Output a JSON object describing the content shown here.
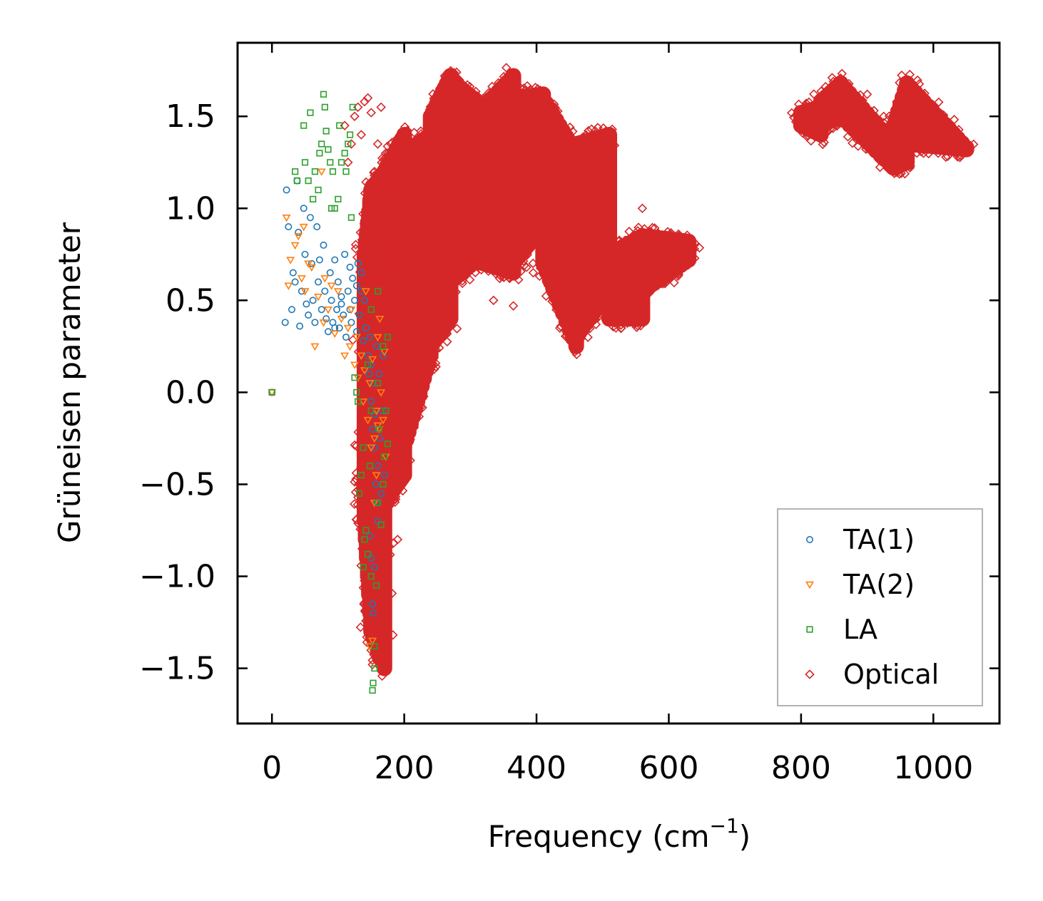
{
  "chart_data": {
    "type": "scatter",
    "title": "",
    "xlabel": "Frequency (cm",
    "xlabel_sup": "−1",
    "xlabel_close": ")",
    "ylabel": "Grüneisen parameter",
    "xlim": [
      -52,
      1100
    ],
    "ylim": [
      -1.8,
      1.9
    ],
    "xticks": [
      0,
      200,
      400,
      600,
      800,
      1000
    ],
    "xtick_labels": [
      "0",
      "200",
      "400",
      "600",
      "800",
      "1000"
    ],
    "yticks": [
      -1.5,
      -1.0,
      -0.5,
      0.0,
      0.5,
      1.0,
      1.5
    ],
    "ytick_labels": [
      "−1.5",
      "−1.0",
      "−0.5",
      "0.0",
      "0.5",
      "1.0",
      "1.5"
    ],
    "grid": false,
    "legend_position": "lower-right",
    "series": [
      {
        "name": "TA(1)",
        "marker": "circle",
        "color": "#1f77b4",
        "points": [
          [
            0,
            0
          ],
          [
            20,
            0.38
          ],
          [
            22,
            1.1
          ],
          [
            25,
            0.9
          ],
          [
            30,
            0.45
          ],
          [
            32,
            0.65
          ],
          [
            35,
            0.6
          ],
          [
            38,
            1.15
          ],
          [
            40,
            0.87
          ],
          [
            42,
            0.36
          ],
          [
            45,
            0.55
          ],
          [
            48,
            1.0
          ],
          [
            50,
            0.75
          ],
          [
            52,
            0.48
          ],
          [
            55,
            0.42
          ],
          [
            58,
            0.95
          ],
          [
            60,
            0.7
          ],
          [
            62,
            0.5
          ],
          [
            65,
            0.38
          ],
          [
            68,
            0.9
          ],
          [
            70,
            0.6
          ],
          [
            72,
            0.72
          ],
          [
            75,
            0.45
          ],
          [
            78,
            0.8
          ],
          [
            80,
            0.55
          ],
          [
            82,
            0.4
          ],
          [
            85,
            0.33
          ],
          [
            88,
            0.65
          ],
          [
            90,
            0.5
          ],
          [
            92,
            0.38
          ],
          [
            95,
            0.72
          ],
          [
            98,
            0.45
          ],
          [
            100,
            0.6
          ],
          [
            102,
            0.35
          ],
          [
            105,
            0.52
          ],
          [
            108,
            0.42
          ],
          [
            110,
            0.75
          ],
          [
            112,
            0.3
          ],
          [
            115,
            0.55
          ],
          [
            118,
            0.45
          ],
          [
            120,
            0.38
          ],
          [
            122,
            0.62
          ],
          [
            125,
            0.5
          ],
          [
            128,
            0.33
          ],
          [
            130,
            0.7
          ],
          [
            132,
            0.42
          ],
          [
            135,
            0.55
          ],
          [
            138,
            0.28
          ],
          [
            140,
            0.5
          ],
          [
            142,
            0.35
          ],
          [
            145,
            0.2
          ],
          [
            147,
            0.1
          ],
          [
            148,
            0.3
          ],
          [
            150,
            -0.05
          ],
          [
            150,
            0.15
          ],
          [
            152,
            -0.2
          ],
          [
            153,
            0.05
          ],
          [
            155,
            -0.3
          ],
          [
            155,
            -0.12
          ],
          [
            157,
            -0.5
          ],
          [
            158,
            0.25
          ],
          [
            160,
            -0.4
          ],
          [
            160,
            -0.7
          ],
          [
            162,
            0.1
          ],
          [
            163,
            -0.25
          ],
          [
            165,
            -0.55
          ],
          [
            167,
            -0.1
          ],
          [
            168,
            0.2
          ],
          [
            170,
            -0.45
          ],
          [
            150,
            -0.9
          ],
          [
            152,
            -1.15
          ],
          [
            153,
            -1.2
          ],
          [
            148,
            -0.78
          ],
          [
            155,
            -0.95
          ],
          [
            158,
            -0.6
          ],
          [
            135,
            0.65
          ],
          [
            128,
            0.58
          ],
          [
            118,
            0.68
          ],
          [
            95,
            0.35
          ],
          [
            105,
            0.48
          ]
        ]
      },
      {
        "name": "TA(2)",
        "marker": "triangle-down",
        "color": "#ff7f0e",
        "points": [
          [
            0,
            0
          ],
          [
            22,
            0.95
          ],
          [
            25,
            0.58
          ],
          [
            28,
            0.72
          ],
          [
            35,
            0.8
          ],
          [
            40,
            0.85
          ],
          [
            45,
            0.62
          ],
          [
            48,
            0.9
          ],
          [
            50,
            0.55
          ],
          [
            55,
            0.7
          ],
          [
            60,
            0.68
          ],
          [
            65,
            0.25
          ],
          [
            70,
            0.52
          ],
          [
            75,
            1.2
          ],
          [
            78,
            0.38
          ],
          [
            80,
            0.62
          ],
          [
            85,
            0.45
          ],
          [
            90,
            0.58
          ],
          [
            95,
            0.32
          ],
          [
            100,
            0.55
          ],
          [
            105,
            0.4
          ],
          [
            110,
            0.2
          ],
          [
            115,
            0.35
          ],
          [
            118,
            0.25
          ],
          [
            120,
            0.45
          ],
          [
            125,
            0.15
          ],
          [
            128,
            0.3
          ],
          [
            130,
            0.08
          ],
          [
            135,
            0.2
          ],
          [
            138,
            -0.05
          ],
          [
            140,
            0.12
          ],
          [
            142,
            0.55
          ],
          [
            145,
            -0.15
          ],
          [
            148,
            0.05
          ],
          [
            150,
            -0.3
          ],
          [
            152,
            0.18
          ],
          [
            155,
            -0.25
          ],
          [
            158,
            -0.1
          ],
          [
            160,
            0.3
          ],
          [
            162,
            -0.2
          ],
          [
            165,
            0.0
          ],
          [
            168,
            -0.15
          ],
          [
            170,
            0.22
          ],
          [
            172,
            -0.35
          ],
          [
            148,
            -1.38
          ],
          [
            152,
            -1.35
          ],
          [
            155,
            -0.6
          ],
          [
            158,
            -0.45
          ],
          [
            160,
            -0.18
          ],
          [
            163,
            0.4
          ]
        ]
      },
      {
        "name": "LA",
        "marker": "square",
        "color": "#2ca02c",
        "points": [
          [
            0,
            0
          ],
          [
            35,
            1.2
          ],
          [
            38,
            1.15
          ],
          [
            48,
            1.45
          ],
          [
            50,
            1.25
          ],
          [
            55,
            1.15
          ],
          [
            58,
            1.52
          ],
          [
            62,
            1.05
          ],
          [
            65,
            1.2
          ],
          [
            70,
            1.1
          ],
          [
            72,
            1.3
          ],
          [
            75,
            1.35
          ],
          [
            78,
            1.62
          ],
          [
            80,
            1.55
          ],
          [
            82,
            1.42
          ],
          [
            85,
            1.32
          ],
          [
            88,
            1.25
          ],
          [
            90,
            1.0
          ],
          [
            92,
            1.2
          ],
          [
            95,
            1.0
          ],
          [
            100,
            1.05
          ],
          [
            102,
            1.45
          ],
          [
            105,
            1.25
          ],
          [
            110,
            1.3
          ],
          [
            112,
            1.2
          ],
          [
            115,
            1.35
          ],
          [
            118,
            1.4
          ],
          [
            120,
            0.95
          ],
          [
            122,
            1.55
          ],
          [
            125,
            0.08
          ],
          [
            128,
            0.0
          ],
          [
            130,
            -0.05
          ],
          [
            132,
            -0.55
          ],
          [
            135,
            -0.45
          ],
          [
            138,
            -0.3
          ],
          [
            140,
            -0.8
          ],
          [
            142,
            -0.75
          ],
          [
            145,
            -0.88
          ],
          [
            148,
            -0.4
          ],
          [
            150,
            -1.0
          ],
          [
            150,
            -0.1
          ],
          [
            152,
            -1.62
          ],
          [
            153,
            -1.58
          ],
          [
            155,
            -1.5
          ],
          [
            155,
            -1.38
          ],
          [
            158,
            -1.05
          ],
          [
            160,
            -0.6
          ],
          [
            160,
            0.55
          ],
          [
            162,
            -0.2
          ],
          [
            165,
            -0.72
          ],
          [
            168,
            0.25
          ],
          [
            170,
            -0.35
          ],
          [
            172,
            -0.1
          ],
          [
            175,
            0.3
          ],
          [
            175,
            -0.28
          ],
          [
            138,
            -0.95
          ],
          [
            145,
            0.15
          ],
          [
            150,
            0.45
          ],
          [
            160,
            0.05
          ],
          [
            168,
            -0.5
          ]
        ]
      },
      {
        "name": "Optical",
        "marker": "diamond",
        "color": "#d62728",
        "dense_bands": [
          {
            "x_from": 140,
            "x_to": 150,
            "steps": 6,
            "lo_from": -0.7,
            "hi_from": 0.75,
            "lo_to": -1.3,
            "hi_to": 1.1
          },
          {
            "x_from": 150,
            "x_to": 170,
            "steps": 8,
            "lo_from": -1.3,
            "hi_from": 1.1,
            "lo_to": -1.5,
            "hi_to": 1.2
          },
          {
            "x_from": 170,
            "x_to": 200,
            "steps": 10,
            "lo_from": -0.6,
            "hi_from": 1.2,
            "lo_to": -0.45,
            "hi_to": 1.4
          },
          {
            "x_from": 200,
            "x_to": 240,
            "steps": 12,
            "lo_from": -0.3,
            "hi_from": 1.3,
            "lo_to": 0.2,
            "hi_to": 1.4
          },
          {
            "x_from": 240,
            "x_to": 270,
            "steps": 10,
            "lo_from": 0.25,
            "hi_from": 1.5,
            "lo_to": 0.4,
            "hi_to": 1.72
          },
          {
            "x_from": 270,
            "x_to": 320,
            "steps": 12,
            "lo_from": 0.6,
            "hi_from": 1.7,
            "lo_to": 0.75,
            "hi_to": 1.55
          },
          {
            "x_from": 320,
            "x_to": 365,
            "steps": 10,
            "lo_from": 0.7,
            "hi_from": 1.55,
            "lo_to": 0.65,
            "hi_to": 1.72
          },
          {
            "x_from": 365,
            "x_to": 410,
            "steps": 10,
            "lo_from": 0.7,
            "hi_from": 1.6,
            "lo_to": 0.9,
            "hi_to": 1.62
          },
          {
            "x_from": 410,
            "x_to": 460,
            "steps": 10,
            "lo_from": 0.7,
            "hi_from": 1.6,
            "lo_to": 0.25,
            "hi_to": 1.3
          },
          {
            "x_from": 460,
            "x_to": 510,
            "steps": 10,
            "lo_from": 0.3,
            "hi_from": 1.35,
            "lo_to": 0.55,
            "hi_to": 1.4
          },
          {
            "x_from": 510,
            "x_to": 560,
            "steps": 10,
            "lo_from": 0.4,
            "hi_from": 0.75,
            "lo_to": 0.4,
            "hi_to": 0.85
          },
          {
            "x_from": 560,
            "x_to": 630,
            "steps": 12,
            "lo_from": 0.55,
            "hi_from": 0.85,
            "lo_to": 0.72,
            "hi_to": 0.82
          },
          {
            "x_from": 800,
            "x_to": 830,
            "steps": 6,
            "lo_from": 1.45,
            "hi_from": 1.52,
            "lo_to": 1.4,
            "hi_to": 1.55
          },
          {
            "x_from": 830,
            "x_to": 860,
            "steps": 8,
            "lo_from": 1.45,
            "hi_from": 1.58,
            "lo_to": 1.5,
            "hi_to": 1.68
          },
          {
            "x_from": 860,
            "x_to": 940,
            "steps": 12,
            "lo_from": 1.5,
            "hi_from": 1.68,
            "lo_to": 1.22,
            "hi_to": 1.35
          },
          {
            "x_from": 940,
            "x_to": 960,
            "steps": 6,
            "lo_from": 1.22,
            "hi_from": 1.45,
            "lo_to": 1.25,
            "hi_to": 1.68
          },
          {
            "x_from": 960,
            "x_to": 1050,
            "steps": 14,
            "lo_from": 1.35,
            "hi_from": 1.68,
            "lo_to": 1.32,
            "hi_to": 1.33
          }
        ],
        "scatter_points": [
          [
            110,
            1.45
          ],
          [
            115,
            1.25
          ],
          [
            120,
            1.35
          ],
          [
            125,
            1.5
          ],
          [
            130,
            1.55
          ],
          [
            135,
            1.4
          ],
          [
            140,
            1.58
          ],
          [
            145,
            1.6
          ],
          [
            150,
            1.52
          ],
          [
            155,
            1.2
          ],
          [
            160,
            1.35
          ],
          [
            165,
            1.55
          ],
          [
            175,
            1.3
          ],
          [
            180,
            1.35
          ],
          [
            190,
            1.35
          ],
          [
            200,
            1.3
          ],
          [
            210,
            1.2
          ],
          [
            215,
            1.35
          ],
          [
            225,
            1.42
          ],
          [
            235,
            1.32
          ],
          [
            300,
            0.9
          ],
          [
            320,
            1.6
          ],
          [
            345,
            0.7
          ],
          [
            360,
            0.65
          ],
          [
            375,
            0.75
          ],
          [
            385,
            0.68
          ],
          [
            395,
            0.65
          ],
          [
            410,
            0.95
          ],
          [
            420,
            0.85
          ],
          [
            430,
            0.8
          ],
          [
            445,
            0.5
          ],
          [
            455,
            0.3
          ],
          [
            458,
            0.22
          ],
          [
            462,
            0.28
          ],
          [
            470,
            0.4
          ],
          [
            490,
            0.5
          ],
          [
            505,
            1.42
          ],
          [
            520,
            0.35
          ],
          [
            540,
            0.45
          ],
          [
            560,
            1.0
          ],
          [
            580,
            0.6
          ],
          [
            600,
            0.75
          ],
          [
            620,
            0.78
          ],
          [
            335,
            0.5
          ],
          [
            365,
            0.47
          ],
          [
            248,
            0.45
          ],
          [
            235,
            0.35
          ],
          [
            210,
            0.0
          ],
          [
            190,
            -0.8
          ],
          [
            180,
            -0.5
          ],
          [
            170,
            -0.9
          ],
          [
            160,
            -1.25
          ],
          [
            158,
            -1.45
          ],
          [
            165,
            -1.05
          ],
          [
            155,
            -1.3
          ],
          [
            152,
            -1.48
          ],
          [
            950,
            1.25
          ],
          [
            970,
            1.6
          ],
          [
            990,
            1.45
          ],
          [
            1010,
            1.38
          ],
          [
            900,
            1.62
          ],
          [
            910,
            1.3
          ],
          [
            925,
            1.5
          ],
          [
            875,
            1.58
          ]
        ]
      }
    ]
  }
}
